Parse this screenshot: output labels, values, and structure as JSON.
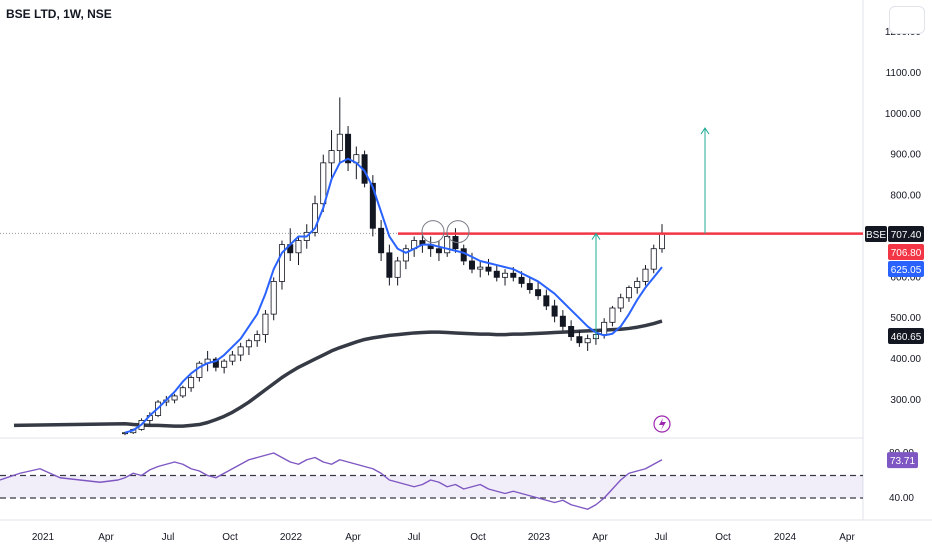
{
  "header": {
    "title": "BSE LTD, 1W, NSE"
  },
  "chart_data": [
    {
      "type": "candlestick",
      "symbol_tag": "BSE",
      "y_axis": {
        "ticks": [
          "1200.00",
          "1100.00",
          "1000.00",
          "900.00",
          "800.00",
          "600.00",
          "500.00",
          "400.00",
          "300.00"
        ],
        "tick_values": [
          1200,
          1100,
          1000,
          900,
          800,
          600,
          500,
          400,
          300
        ],
        "range": [
          220,
          1240
        ]
      },
      "x_axis": {
        "labels": [
          "2021",
          "Apr",
          "Jul",
          "Oct",
          "2022",
          "Apr",
          "Jul",
          "Oct",
          "2023",
          "Apr",
          "Jul",
          "Oct",
          "2024",
          "Apr"
        ]
      },
      "price_tags": [
        {
          "label": "707.40",
          "value": 707.4,
          "color": "#131722"
        },
        {
          "label": "706.80",
          "value": 706.8,
          "color": "#f23645"
        },
        {
          "label": "625.05",
          "value": 625.05,
          "color": "#2962ff"
        },
        {
          "label": "460.65",
          "value": 460.65,
          "color": "#131722"
        }
      ],
      "resistance_level": 707,
      "series": [
        {
          "name": "EMA (short)",
          "color": "#2962ff",
          "values": [
            220,
            226,
            240,
            262,
            280,
            300,
            320,
            345,
            365,
            380,
            390,
            395,
            410,
            430,
            450,
            480,
            510,
            560,
            620,
            660,
            680,
            700,
            700,
            720,
            770,
            840,
            880,
            890,
            880,
            860,
            820,
            760,
            700,
            670,
            660,
            670,
            680,
            680,
            675,
            670,
            665,
            660,
            650,
            640,
            635,
            630,
            625,
            620,
            610,
            600,
            590,
            575,
            560,
            540,
            520,
            500,
            480,
            465,
            458,
            462,
            480,
            510,
            545,
            575,
            600,
            625
          ]
        },
        {
          "name": "EMA (long)",
          "color": "#363a45",
          "values": [
            242,
            240,
            239,
            238,
            238,
            237,
            236,
            236,
            238,
            240,
            245,
            252,
            260,
            270,
            282,
            295,
            310,
            325,
            340,
            355,
            368,
            380,
            390,
            400,
            410,
            420,
            428,
            435,
            442,
            448,
            452,
            455,
            458,
            460,
            462,
            464,
            465,
            466,
            466,
            465,
            464,
            463,
            462,
            461,
            461,
            460,
            460,
            461,
            461,
            462,
            463,
            464,
            465,
            466,
            467,
            468,
            469,
            470,
            471,
            472,
            473,
            475,
            478,
            482,
            487,
            493
          ]
        }
      ],
      "candles": [
        [
          218,
          222,
          214,
          220
        ],
        [
          220,
          230,
          217,
          228
        ],
        [
          228,
          255,
          225,
          250
        ],
        [
          250,
          270,
          240,
          262
        ],
        [
          262,
          300,
          258,
          295
        ],
        [
          295,
          310,
          285,
          300
        ],
        [
          300,
          315,
          292,
          310
        ],
        [
          310,
          335,
          305,
          330
        ],
        [
          330,
          360,
          320,
          355
        ],
        [
          355,
          395,
          345,
          390
        ],
        [
          390,
          420,
          370,
          400
        ],
        [
          400,
          405,
          370,
          380
        ],
        [
          380,
          400,
          365,
          395
        ],
        [
          395,
          420,
          385,
          410
        ],
        [
          410,
          440,
          395,
          430
        ],
        [
          430,
          450,
          410,
          445
        ],
        [
          445,
          470,
          430,
          460
        ],
        [
          460,
          520,
          440,
          510
        ],
        [
          510,
          600,
          495,
          590
        ],
        [
          590,
          690,
          570,
          680
        ],
        [
          680,
          720,
          640,
          660
        ],
        [
          660,
          700,
          630,
          690
        ],
        [
          690,
          730,
          670,
          710
        ],
        [
          710,
          800,
          700,
          780
        ],
        [
          780,
          900,
          760,
          880
        ],
        [
          880,
          960,
          840,
          910
        ],
        [
          910,
          1040,
          880,
          950
        ],
        [
          950,
          970,
          860,
          880
        ],
        [
          880,
          920,
          840,
          900
        ],
        [
          900,
          910,
          820,
          830
        ],
        [
          830,
          850,
          700,
          720
        ],
        [
          720,
          740,
          640,
          660
        ],
        [
          660,
          680,
          580,
          600
        ],
        [
          600,
          650,
          580,
          640
        ],
        [
          640,
          680,
          620,
          670
        ],
        [
          670,
          700,
          650,
          690
        ],
        [
          690,
          710,
          660,
          680
        ],
        [
          680,
          700,
          650,
          670
        ],
        [
          670,
          690,
          640,
          660
        ],
        [
          660,
          710,
          650,
          700
        ],
        [
          700,
          720,
          660,
          670
        ],
        [
          670,
          680,
          630,
          640
        ],
        [
          640,
          660,
          610,
          620
        ],
        [
          620,
          640,
          600,
          625
        ],
        [
          625,
          645,
          605,
          615
        ],
        [
          615,
          630,
          590,
          600
        ],
        [
          600,
          620,
          580,
          610
        ],
        [
          610,
          625,
          590,
          600
        ],
        [
          600,
          615,
          575,
          585
        ],
        [
          585,
          600,
          560,
          570
        ],
        [
          570,
          590,
          545,
          555
        ],
        [
          555,
          570,
          520,
          530
        ],
        [
          530,
          545,
          490,
          505
        ],
        [
          505,
          520,
          470,
          480
        ],
        [
          480,
          495,
          445,
          455
        ],
        [
          455,
          470,
          430,
          440
        ],
        [
          440,
          460,
          420,
          450
        ],
        [
          450,
          470,
          435,
          460
        ],
        [
          460,
          500,
          450,
          490
        ],
        [
          490,
          530,
          480,
          525
        ],
        [
          525,
          560,
          515,
          550
        ],
        [
          550,
          580,
          540,
          575
        ],
        [
          575,
          600,
          560,
          590
        ],
        [
          590,
          630,
          580,
          620
        ],
        [
          620,
          680,
          610,
          670
        ],
        [
          670,
          730,
          660,
          707
        ]
      ]
    },
    {
      "type": "line",
      "name": "RSI",
      "y_axis": {
        "ticks": [
          "80.00",
          "40.00"
        ],
        "tick_values": [
          80,
          40
        ],
        "range": [
          30,
          90
        ]
      },
      "band": [
        40,
        60
      ],
      "last_value_tag": "73.71",
      "series": [
        {
          "name": "RSI",
          "color": "#7e57c2",
          "values": [
            58,
            62,
            60,
            65,
            68,
            70,
            72,
            70,
            66,
            64,
            60,
            58,
            62,
            66,
            70,
            74,
            76,
            78,
            80,
            76,
            72,
            70,
            74,
            76,
            72,
            70,
            74,
            72,
            70,
            68,
            66,
            62,
            56,
            54,
            52,
            50,
            52,
            56,
            54,
            50,
            52,
            48,
            50,
            52,
            48,
            46,
            44,
            46,
            44,
            42,
            40,
            38,
            36,
            38,
            34,
            32,
            30,
            34,
            40,
            48,
            56,
            62,
            64,
            66,
            70,
            74
          ]
        }
      ]
    }
  ]
}
